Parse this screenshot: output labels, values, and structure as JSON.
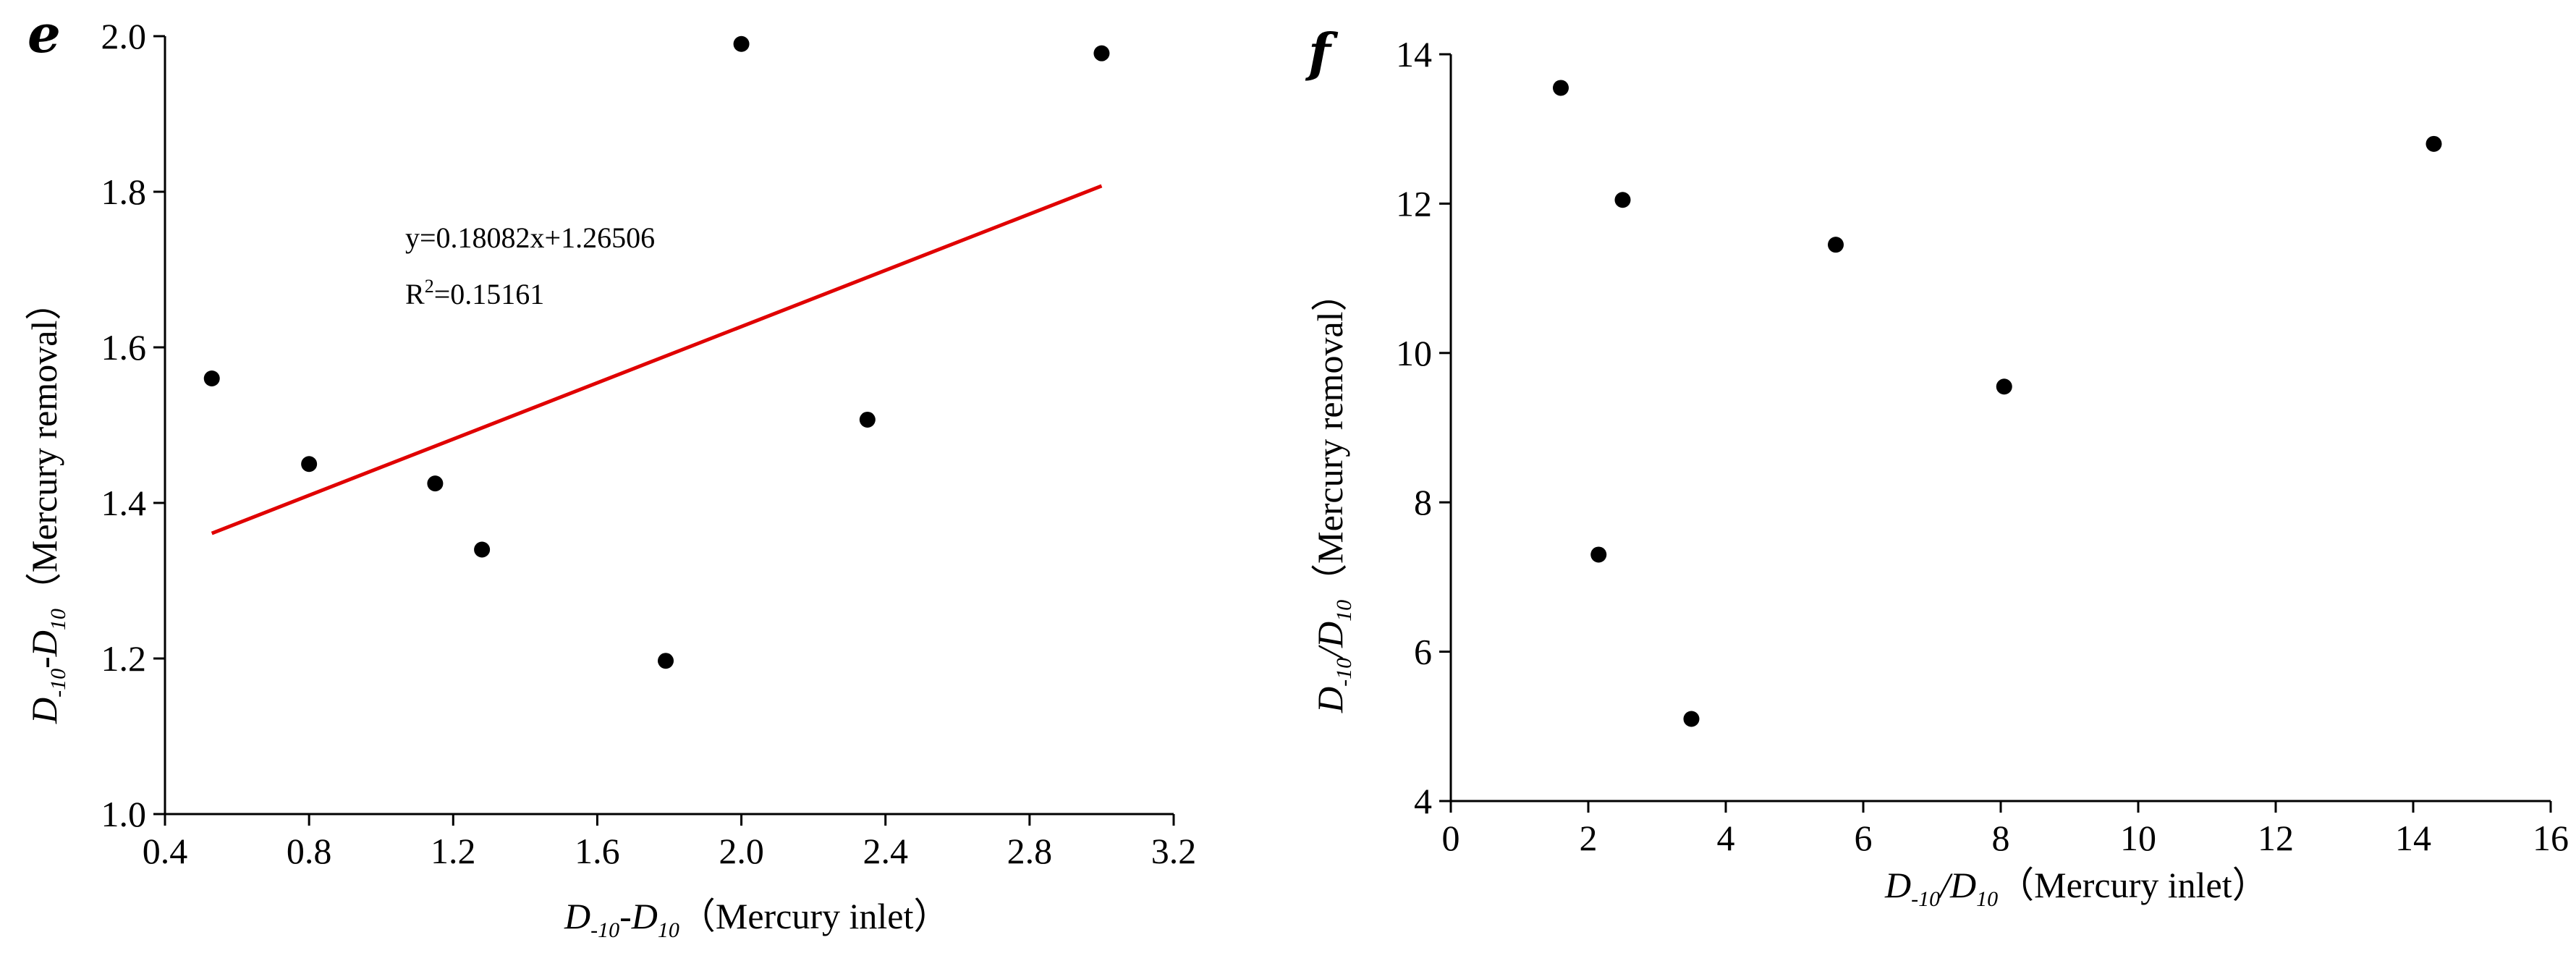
{
  "chart_data": [
    {
      "type": "scatter",
      "panel_label": "e",
      "xlabel": {
        "main": "D",
        "sub1": "-10",
        "mid": "-D",
        "sub2": "10",
        "suffix": "（Mercury inlet）"
      },
      "ylabel": {
        "main": "D",
        "sub1": "-10",
        "mid": "-D",
        "sub2": "10",
        "suffix": "（Mercury removal）"
      },
      "xlim": [
        0.4,
        3.2
      ],
      "ylim": [
        1.0,
        2.0
      ],
      "xticks": [
        0.4,
        0.8,
        1.2,
        1.6,
        2.0,
        2.4,
        2.8,
        3.2
      ],
      "yticks": [
        1.0,
        1.2,
        1.4,
        1.6,
        1.8,
        2.0
      ],
      "xtick_labels": [
        "0.4",
        "0.8",
        "1.2",
        "1.6",
        "2.0",
        "2.4",
        "2.8",
        "3.2"
      ],
      "ytick_labels": [
        "1.0",
        "1.2",
        "1.4",
        "1.6",
        "1.8",
        "2.0"
      ],
      "grid": false,
      "points": [
        {
          "x": 0.53,
          "y": 1.56
        },
        {
          "x": 0.8,
          "y": 1.45
        },
        {
          "x": 1.15,
          "y": 1.425
        },
        {
          "x": 1.28,
          "y": 1.34
        },
        {
          "x": 1.79,
          "y": 1.197
        },
        {
          "x": 2.0,
          "y": 1.99
        },
        {
          "x": 2.35,
          "y": 1.507
        },
        {
          "x": 3.0,
          "y": 1.978
        }
      ],
      "fit": {
        "slope": 0.18082,
        "intercept": 1.26506,
        "x_range": [
          0.53,
          3.0
        ],
        "color": "#e00000"
      },
      "equation_text": "y=0.18082x+1.26506",
      "r2_label": "R",
      "r2_sup": "2",
      "r2_value": "=0.15161"
    },
    {
      "type": "scatter",
      "panel_label": "f",
      "xlabel": {
        "main": "D",
        "sub1": "-10",
        "mid": "/D",
        "sub2": "10",
        "suffix": "（Mercury inlet）"
      },
      "ylabel": {
        "main": "D",
        "sub1": "-10",
        "mid": "/D",
        "sub2": "10",
        "suffix": "（Mercury removal）"
      },
      "xlim": [
        0,
        16
      ],
      "ylim": [
        4,
        14
      ],
      "xticks": [
        0,
        2,
        4,
        6,
        8,
        10,
        12,
        14,
        16
      ],
      "yticks": [
        4,
        6,
        8,
        10,
        12,
        14
      ],
      "xtick_labels": [
        "0",
        "2",
        "4",
        "6",
        "8",
        "10",
        "12",
        "14",
        "16"
      ],
      "ytick_labels": [
        "4",
        "6",
        "8",
        "10",
        "12",
        "14"
      ],
      "grid": false,
      "points": [
        {
          "x": 1.6,
          "y": 13.55
        },
        {
          "x": 2.15,
          "y": 7.3
        },
        {
          "x": 2.5,
          "y": 12.05
        },
        {
          "x": 3.5,
          "y": 5.1
        },
        {
          "x": 5.6,
          "y": 11.45
        },
        {
          "x": 8.05,
          "y": 9.55
        },
        {
          "x": 14.3,
          "y": 12.8
        }
      ]
    }
  ]
}
